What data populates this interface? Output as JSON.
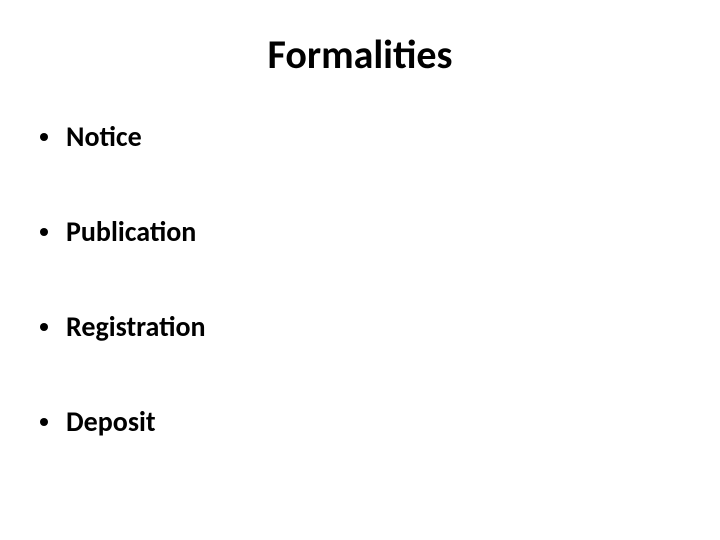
{
  "slide": {
    "title": "Formalities",
    "bullets": [
      {
        "text": "Notice"
      },
      {
        "text": "Publication"
      },
      {
        "text": "Registration"
      },
      {
        "text": "Deposit"
      }
    ],
    "styling": {
      "background_color": "#ffffff",
      "title_color": "#000000",
      "title_fontsize": 40,
      "title_fontweight": "bold",
      "bullet_color": "#000000",
      "bullet_fontsize": 28,
      "bullet_fontweight": "bold",
      "bullet_marker_color": "#000000",
      "bullet_marker_size": 8,
      "bullet_spacing": 60,
      "font_family": "Calibri"
    }
  }
}
